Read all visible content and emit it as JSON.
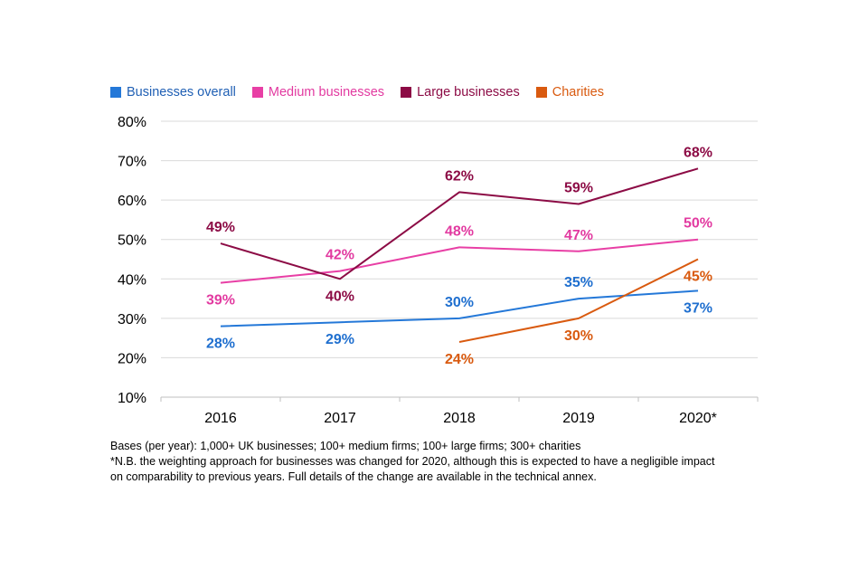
{
  "chart_data": {
    "type": "line",
    "categories": [
      "2016",
      "2017",
      "2018",
      "2019",
      "2020*"
    ],
    "ylim": [
      10,
      80
    ],
    "yticks": [
      10,
      20,
      30,
      40,
      50,
      60,
      70,
      80
    ],
    "ytick_labels": [
      "10%",
      "20%",
      "30%",
      "40%",
      "50%",
      "60%",
      "70%",
      "80%"
    ],
    "xlabel": "",
    "ylabel": "",
    "grid": true,
    "legend_position": "top-left",
    "series": [
      {
        "name": "Businesses overall",
        "color": "#2478d8",
        "label_color": "#1f6fcf",
        "values": [
          28,
          29,
          30,
          35,
          37
        ],
        "labels": [
          "28%",
          "29%",
          "30%",
          "35%",
          "37%"
        ],
        "label_side": [
          "below",
          "below",
          "above",
          "above",
          "below"
        ]
      },
      {
        "name": "Medium businesses",
        "color": "#e83fa5",
        "label_color": "#e23aa0",
        "values": [
          39,
          42,
          48,
          47,
          50
        ],
        "labels": [
          "39%",
          "42%",
          "48%",
          "47%",
          "50%"
        ],
        "label_side": [
          "below",
          "above",
          "above",
          "above",
          "above"
        ]
      },
      {
        "name": "Large businesses",
        "color": "#8c0b45",
        "label_color": "#8c0b45",
        "values": [
          49,
          40,
          62,
          59,
          68
        ],
        "labels": [
          "49%",
          "40%",
          "62%",
          "59%",
          "68%"
        ],
        "label_side": [
          "above",
          "below",
          "above",
          "above",
          "above"
        ]
      },
      {
        "name": "Charities",
        "color": "#d95a0f",
        "label_color": "#d95a0f",
        "values": [
          null,
          null,
          24,
          30,
          45
        ],
        "labels": [
          "",
          "",
          "24%",
          "30%",
          "45%"
        ],
        "label_side": [
          "",
          "",
          "below",
          "below",
          "below"
        ]
      }
    ]
  },
  "notes": {
    "line1": "Bases (per year): 1,000+ UK businesses; 100+ medium firms; 100+ large firms; 300+ charities",
    "line2": "*N.B. the weighting approach for businesses was changed for 2020, although this is expected to have a negligible impact",
    "line3": "on comparability to previous years. Full details of the change are available in the technical annex."
  }
}
